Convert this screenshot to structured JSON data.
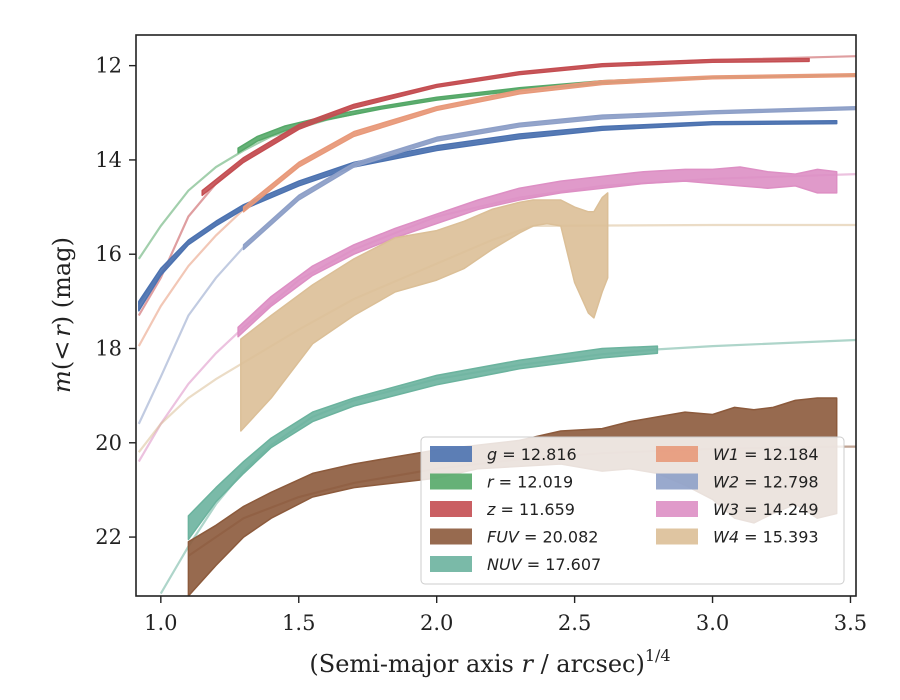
{
  "chart_data": {
    "type": "area",
    "xlabel": "(Semi-major axis r / arcsec)",
    "xlabel_parts": {
      "main": "(Semi-major axis ",
      "var": "r",
      "rest": " / arcsec)",
      "exp": "1/4"
    },
    "ylabel": "m(< r) (mag)",
    "ylabel_parts": {
      "m": "m",
      "open": "(",
      "lt": "<",
      "r": "r",
      "rest": ") (mag)"
    },
    "xlim": [
      0.91,
      3.52
    ],
    "ylim": [
      23.25,
      11.35
    ],
    "y_inverted": true,
    "grid": false,
    "legend_position": "lower-right",
    "x_ticks": [
      "1.0",
      "1.5",
      "2.0",
      "2.5",
      "3.0",
      "3.5"
    ],
    "y_ticks": [
      "12",
      "14",
      "16",
      "18",
      "20",
      "22"
    ],
    "series": [
      {
        "key": "g",
        "band": "g",
        "magnitude": "12.816",
        "color": "#4c72b0",
        "model": [
          [
            0.92,
            17.05
          ],
          [
            1.0,
            16.4
          ],
          [
            1.1,
            15.75
          ],
          [
            1.2,
            15.35
          ],
          [
            1.3,
            15.0
          ],
          [
            1.5,
            14.5
          ],
          [
            1.7,
            14.1
          ],
          [
            2.0,
            13.75
          ],
          [
            2.3,
            13.5
          ],
          [
            2.6,
            13.33
          ],
          [
            3.0,
            13.22
          ],
          [
            3.45,
            13.2
          ]
        ],
        "data": [
          [
            0.92,
            17.2,
            17.0
          ],
          [
            1.0,
            16.45,
            16.3
          ],
          [
            1.1,
            15.8,
            15.7
          ],
          [
            1.2,
            15.4,
            15.3
          ],
          [
            1.3,
            15.05,
            14.95
          ],
          [
            1.5,
            14.55,
            14.45
          ],
          [
            1.7,
            14.15,
            14.05
          ],
          [
            2.0,
            13.8,
            13.7
          ],
          [
            2.3,
            13.55,
            13.45
          ],
          [
            2.6,
            13.37,
            13.29
          ],
          [
            3.0,
            13.25,
            13.19
          ],
          [
            3.45,
            13.23,
            13.17
          ]
        ]
      },
      {
        "key": "r",
        "band": "r",
        "magnitude": "12.019",
        "color": "#55a868",
        "model": [
          [
            0.92,
            16.1
          ],
          [
            1.0,
            15.4
          ],
          [
            1.1,
            14.65
          ],
          [
            1.2,
            14.15
          ],
          [
            1.3,
            13.8
          ],
          [
            1.4,
            13.5
          ],
          [
            1.6,
            13.15
          ],
          [
            1.8,
            12.9
          ],
          [
            2.0,
            12.7
          ],
          [
            2.3,
            12.5
          ],
          [
            2.6,
            12.35
          ],
          [
            3.0,
            12.25
          ],
          [
            3.52,
            12.2
          ]
        ],
        "data": [
          [
            1.28,
            13.85,
            13.75
          ],
          [
            1.35,
            13.6,
            13.5
          ],
          [
            1.45,
            13.38,
            13.28
          ],
          [
            1.6,
            13.15,
            13.07
          ],
          [
            1.8,
            12.92,
            12.86
          ],
          [
            2.0,
            12.73,
            12.67
          ],
          [
            2.3,
            12.53,
            12.47
          ],
          [
            2.6,
            12.38,
            12.32
          ],
          [
            3.0,
            12.27,
            12.23
          ],
          [
            3.52,
            12.22,
            12.18
          ]
        ]
      },
      {
        "key": "z",
        "band": "z",
        "magnitude": "11.659",
        "color": "#c44e52",
        "model": [
          [
            0.92,
            17.3
          ],
          [
            1.0,
            16.5
          ],
          [
            1.1,
            15.2
          ],
          [
            1.2,
            14.5
          ],
          [
            1.3,
            14.0
          ],
          [
            1.5,
            13.3
          ],
          [
            1.7,
            12.85
          ],
          [
            2.0,
            12.42
          ],
          [
            2.3,
            12.15
          ],
          [
            2.6,
            11.98
          ],
          [
            3.0,
            11.88
          ],
          [
            3.52,
            11.8
          ]
        ],
        "data": [
          [
            1.15,
            14.75,
            14.65
          ],
          [
            1.3,
            14.05,
            13.95
          ],
          [
            1.5,
            13.35,
            13.25
          ],
          [
            1.7,
            12.9,
            12.82
          ],
          [
            2.0,
            12.46,
            12.4
          ],
          [
            2.3,
            12.19,
            12.13
          ],
          [
            2.6,
            12.02,
            11.96
          ],
          [
            3.0,
            11.93,
            11.87
          ],
          [
            3.35,
            11.91,
            11.85
          ]
        ]
      },
      {
        "key": "FUV",
        "band": "FUV",
        "magnitude": "20.082",
        "color": "#8c5a3c",
        "model": [
          [
            1.1,
            22.4
          ],
          [
            1.3,
            21.6
          ],
          [
            1.5,
            21.15
          ],
          [
            1.7,
            20.85
          ],
          [
            2.0,
            20.55
          ],
          [
            2.3,
            20.35
          ],
          [
            2.6,
            20.22
          ],
          [
            3.0,
            20.13
          ],
          [
            3.45,
            20.08
          ],
          [
            3.52,
            20.08
          ]
        ],
        "data": [
          [
            1.1,
            23.25,
            22.1
          ],
          [
            1.2,
            22.6,
            21.75
          ],
          [
            1.3,
            22.0,
            21.35
          ],
          [
            1.4,
            21.6,
            21.05
          ],
          [
            1.55,
            21.15,
            20.65
          ],
          [
            1.7,
            20.95,
            20.45
          ],
          [
            1.85,
            20.85,
            20.3
          ],
          [
            2.0,
            20.75,
            20.15
          ],
          [
            2.15,
            20.55,
            20.05
          ],
          [
            2.3,
            20.5,
            19.95
          ],
          [
            2.45,
            20.45,
            19.75
          ],
          [
            2.6,
            20.6,
            19.7
          ],
          [
            2.7,
            20.55,
            19.55
          ],
          [
            2.8,
            20.65,
            19.45
          ],
          [
            2.9,
            20.9,
            19.35
          ],
          [
            3.0,
            21.2,
            19.4
          ],
          [
            3.08,
            21.6,
            19.25
          ],
          [
            3.15,
            21.7,
            19.3
          ],
          [
            3.22,
            21.5,
            19.25
          ],
          [
            3.3,
            21.3,
            19.1
          ],
          [
            3.38,
            21.6,
            19.05
          ],
          [
            3.45,
            21.5,
            19.05
          ]
        ]
      },
      {
        "key": "NUV",
        "band": "NUV",
        "magnitude": "17.607",
        "color": "#6bb39e",
        "model": [
          [
            1.0,
            23.2
          ],
          [
            1.1,
            22.2
          ],
          [
            1.2,
            21.3
          ],
          [
            1.3,
            20.6
          ],
          [
            1.4,
            20.05
          ],
          [
            1.55,
            19.45
          ],
          [
            1.7,
            19.1
          ],
          [
            2.0,
            18.65
          ],
          [
            2.3,
            18.35
          ],
          [
            2.6,
            18.12
          ],
          [
            2.8,
            18.02
          ],
          [
            3.0,
            17.95
          ],
          [
            3.52,
            17.82
          ]
        ],
        "data": [
          [
            1.1,
            22.05,
            21.55
          ],
          [
            1.2,
            21.25,
            20.95
          ],
          [
            1.3,
            20.65,
            20.4
          ],
          [
            1.4,
            20.1,
            19.9
          ],
          [
            1.55,
            19.55,
            19.35
          ],
          [
            1.7,
            19.22,
            19.05
          ],
          [
            2.0,
            18.77,
            18.57
          ],
          [
            2.3,
            18.43,
            18.25
          ],
          [
            2.6,
            18.2,
            18.0
          ],
          [
            2.8,
            18.1,
            17.95
          ]
        ]
      },
      {
        "key": "W1",
        "band": "W1",
        "magnitude": "12.184",
        "color": "#e8997a",
        "model": [
          [
            0.92,
            17.95
          ],
          [
            1.0,
            17.1
          ],
          [
            1.1,
            16.25
          ],
          [
            1.2,
            15.6
          ],
          [
            1.3,
            15.05
          ],
          [
            1.5,
            14.1
          ],
          [
            1.7,
            13.45
          ],
          [
            2.0,
            12.9
          ],
          [
            2.3,
            12.55
          ],
          [
            2.6,
            12.35
          ],
          [
            3.0,
            12.25
          ],
          [
            3.52,
            12.2
          ]
        ],
        "data": [
          [
            1.3,
            15.1,
            15.0
          ],
          [
            1.5,
            14.15,
            14.05
          ],
          [
            1.7,
            13.5,
            13.4
          ],
          [
            2.0,
            12.95,
            12.87
          ],
          [
            2.3,
            12.6,
            12.52
          ],
          [
            2.6,
            12.4,
            12.32
          ],
          [
            3.0,
            12.28,
            12.22
          ],
          [
            3.52,
            12.23,
            12.17
          ]
        ]
      },
      {
        "key": "W2",
        "band": "W2",
        "magnitude": "12.798",
        "color": "#8ea0c8",
        "model": [
          [
            0.92,
            19.6
          ],
          [
            1.0,
            18.6
          ],
          [
            1.1,
            17.3
          ],
          [
            1.2,
            16.5
          ],
          [
            1.3,
            15.85
          ],
          [
            1.5,
            14.8
          ],
          [
            1.7,
            14.1
          ],
          [
            2.0,
            13.55
          ],
          [
            2.3,
            13.25
          ],
          [
            2.6,
            13.08
          ],
          [
            3.0,
            12.98
          ],
          [
            3.52,
            12.9
          ]
        ],
        "data": [
          [
            1.3,
            15.9,
            15.8
          ],
          [
            1.5,
            14.85,
            14.75
          ],
          [
            1.7,
            14.15,
            14.07
          ],
          [
            2.0,
            13.6,
            13.52
          ],
          [
            2.3,
            13.3,
            13.22
          ],
          [
            2.6,
            13.13,
            13.05
          ],
          [
            3.0,
            13.02,
            12.96
          ],
          [
            3.52,
            12.93,
            12.87
          ]
        ]
      },
      {
        "key": "W3",
        "band": "W3",
        "magnitude": "14.249",
        "color": "#dd8fc4",
        "model": [
          [
            0.92,
            20.4
          ],
          [
            1.0,
            19.6
          ],
          [
            1.1,
            18.75
          ],
          [
            1.2,
            18.1
          ],
          [
            1.3,
            17.55
          ],
          [
            1.5,
            16.55
          ],
          [
            1.7,
            15.9
          ],
          [
            2.0,
            15.2
          ],
          [
            2.3,
            14.8
          ],
          [
            2.6,
            14.55
          ],
          [
            3.0,
            14.4
          ],
          [
            3.52,
            14.3
          ]
        ],
        "data": [
          [
            1.28,
            17.75,
            17.55
          ],
          [
            1.4,
            17.1,
            16.9
          ],
          [
            1.55,
            16.45,
            16.25
          ],
          [
            1.7,
            16.0,
            15.8
          ],
          [
            1.85,
            15.65,
            15.45
          ],
          [
            2.0,
            15.35,
            15.15
          ],
          [
            2.15,
            15.05,
            14.85
          ],
          [
            2.3,
            14.85,
            14.6
          ],
          [
            2.45,
            14.7,
            14.45
          ],
          [
            2.6,
            14.6,
            14.35
          ],
          [
            2.75,
            14.5,
            14.25
          ],
          [
            2.9,
            14.45,
            14.2
          ],
          [
            3.0,
            14.5,
            14.2
          ],
          [
            3.1,
            14.55,
            14.15
          ],
          [
            3.2,
            14.6,
            14.25
          ],
          [
            3.3,
            14.55,
            14.3
          ],
          [
            3.38,
            14.7,
            14.2
          ],
          [
            3.45,
            14.7,
            14.25
          ]
        ]
      },
      {
        "key": "W4",
        "band": "W4",
        "magnitude": "15.393",
        "color": "#dbbf97",
        "model": [
          [
            0.92,
            20.2
          ],
          [
            1.0,
            19.6
          ],
          [
            1.1,
            19.05
          ],
          [
            1.2,
            18.65
          ],
          [
            1.3,
            18.3
          ],
          [
            1.5,
            17.6
          ],
          [
            1.7,
            16.95
          ],
          [
            2.0,
            16.2
          ],
          [
            2.2,
            15.7
          ],
          [
            2.35,
            15.4
          ],
          [
            3.0,
            15.38
          ],
          [
            3.52,
            15.38
          ]
        ],
        "data": [
          [
            1.29,
            19.75,
            17.8
          ],
          [
            1.4,
            19.05,
            17.3
          ],
          [
            1.55,
            17.9,
            16.65
          ],
          [
            1.7,
            17.3,
            16.1
          ],
          [
            1.85,
            16.8,
            15.65
          ],
          [
            2.0,
            16.55,
            15.5
          ],
          [
            2.1,
            16.3,
            15.3
          ],
          [
            2.2,
            15.9,
            15.05
          ],
          [
            2.3,
            15.55,
            14.9
          ],
          [
            2.35,
            15.4,
            14.85
          ],
          [
            2.4,
            15.35,
            14.85
          ],
          [
            2.45,
            15.4,
            14.85
          ],
          [
            2.5,
            16.6,
            15.0
          ],
          [
            2.55,
            17.25,
            15.1
          ],
          [
            2.57,
            17.35,
            15.1
          ],
          [
            2.6,
            16.8,
            14.8
          ],
          [
            2.62,
            16.5,
            14.7
          ]
        ]
      }
    ]
  }
}
